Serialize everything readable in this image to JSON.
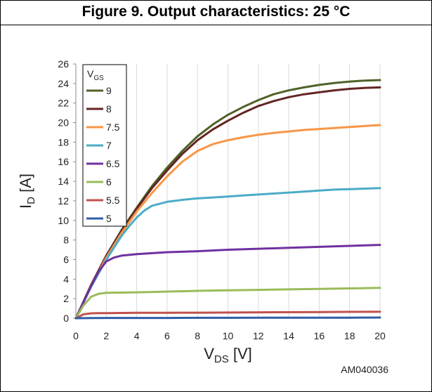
{
  "figure_title": "Figure 9. Output characteristics: 25 °C",
  "figure_code": "AM040036",
  "chart_data": {
    "type": "line",
    "xlabel": {
      "main": "V",
      "sub": "DS",
      "unit": "[V]"
    },
    "ylabel": {
      "main": "I",
      "sub": "D",
      "unit": "[A]"
    },
    "xlim": [
      0,
      20
    ],
    "ylim": [
      0,
      26
    ],
    "xticks": [
      0,
      2,
      4,
      6,
      8,
      10,
      12,
      14,
      16,
      18,
      20
    ],
    "yticks": [
      0,
      2,
      4,
      6,
      8,
      10,
      12,
      14,
      16,
      18,
      20,
      22,
      24,
      26
    ],
    "grid": "vertical",
    "legend": {
      "title_main": "V",
      "title_sub": "GS",
      "placement": "top-left"
    },
    "series": [
      {
        "name": "9",
        "color": "#4f6228",
        "x": [
          0,
          1,
          2,
          3,
          4,
          5,
          6,
          7,
          8,
          9,
          10,
          11,
          12,
          13,
          14,
          15,
          16,
          17,
          18,
          19,
          20
        ],
        "y": [
          0,
          3.4,
          6.4,
          9.0,
          11.3,
          13.5,
          15.4,
          17.1,
          18.6,
          19.8,
          20.8,
          21.6,
          22.3,
          22.9,
          23.3,
          23.6,
          23.85,
          24.05,
          24.2,
          24.3,
          24.35
        ]
      },
      {
        "name": "8",
        "color": "#632523",
        "x": [
          0,
          1,
          2,
          3,
          4,
          5,
          6,
          7,
          8,
          9,
          10,
          11,
          12,
          13,
          14,
          15,
          16,
          17,
          18,
          19,
          20
        ],
        "y": [
          0,
          3.4,
          6.4,
          8.9,
          11.2,
          13.3,
          15.1,
          16.8,
          18.2,
          19.3,
          20.2,
          21.0,
          21.7,
          22.2,
          22.6,
          22.9,
          23.1,
          23.3,
          23.45,
          23.55,
          23.6
        ]
      },
      {
        "name": "7.5",
        "color": "#f79646",
        "x": [
          0,
          1,
          2,
          3,
          4,
          5,
          6,
          7,
          8,
          9,
          10,
          11,
          12,
          13,
          14,
          15,
          16,
          17,
          18,
          19,
          20
        ],
        "y": [
          0,
          3.3,
          6.2,
          8.7,
          10.9,
          12.8,
          14.5,
          16.0,
          17.1,
          17.8,
          18.2,
          18.5,
          18.75,
          18.95,
          19.1,
          19.25,
          19.35,
          19.45,
          19.55,
          19.65,
          19.75
        ]
      },
      {
        "name": "7",
        "color": "#4bacc6",
        "x": [
          0,
          1,
          2,
          3,
          3.5,
          4,
          4.5,
          5,
          6,
          7,
          8,
          9,
          10,
          11,
          12,
          13,
          14,
          15,
          16,
          17,
          18,
          19,
          20
        ],
        "y": [
          0,
          3.2,
          6.0,
          8.4,
          9.4,
          10.3,
          11.0,
          11.5,
          11.9,
          12.1,
          12.25,
          12.35,
          12.45,
          12.55,
          12.65,
          12.75,
          12.85,
          12.95,
          13.05,
          13.15,
          13.2,
          13.25,
          13.3
        ]
      },
      {
        "name": "6.5",
        "color": "#7030a0",
        "x": [
          0,
          1,
          1.5,
          2,
          2.5,
          3,
          4,
          5,
          6,
          8,
          10,
          12,
          14,
          16,
          18,
          20
        ],
        "y": [
          0,
          3.3,
          4.8,
          5.8,
          6.2,
          6.4,
          6.55,
          6.65,
          6.75,
          6.85,
          7.0,
          7.1,
          7.2,
          7.3,
          7.4,
          7.5
        ]
      },
      {
        "name": "6",
        "color": "#9bbb59",
        "x": [
          0,
          0.5,
          1,
          1.5,
          2,
          3,
          4,
          6,
          8,
          10,
          12,
          14,
          16,
          18,
          20
        ],
        "y": [
          0,
          1.3,
          2.2,
          2.5,
          2.6,
          2.62,
          2.65,
          2.72,
          2.8,
          2.85,
          2.9,
          2.95,
          3.0,
          3.05,
          3.1
        ]
      },
      {
        "name": "5.5",
        "color": "#c0504d",
        "x": [
          0,
          0.5,
          1,
          1.5,
          2,
          4,
          6,
          8,
          10,
          12,
          14,
          16,
          18,
          20
        ],
        "y": [
          0,
          0.4,
          0.5,
          0.52,
          0.52,
          0.55,
          0.56,
          0.57,
          0.58,
          0.6,
          0.62,
          0.63,
          0.65,
          0.67
        ]
      },
      {
        "name": "5",
        "color": "#2e5ea8",
        "x": [
          0,
          1,
          2,
          4,
          6,
          8,
          10,
          12,
          14,
          16,
          18,
          20
        ],
        "y": [
          0,
          0.02,
          0.03,
          0.03,
          0.03,
          0.04,
          0.04,
          0.05,
          0.05,
          0.06,
          0.06,
          0.07
        ]
      }
    ]
  }
}
